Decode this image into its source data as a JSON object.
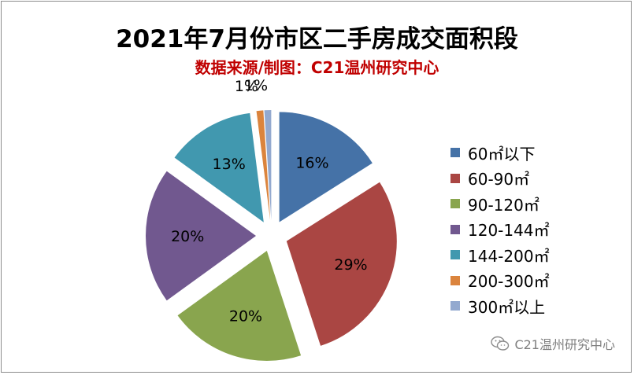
{
  "chart_data": {
    "type": "pie",
    "title": "2021年7月份市区二手房成交面积段",
    "subtitle": "数据来源/制图：C21温州研究中心",
    "categories": [
      "60㎡以下",
      "60-90㎡",
      "90-120㎡",
      "120-144㎡",
      "144-200㎡",
      "200-300㎡",
      "300㎡以上"
    ],
    "values": [
      16,
      29,
      20,
      20,
      13,
      1,
      1
    ],
    "labels": [
      "16%",
      "29%",
      "20%",
      "20%",
      "13%",
      "1%",
      "1%"
    ],
    "colors": [
      "#4572a7",
      "#aa4643",
      "#89a54e",
      "#71588f",
      "#4198af",
      "#db843d",
      "#93a9cf"
    ],
    "legend_position": "right"
  },
  "watermark": {
    "text": "C21温州研究中心",
    "icon": "wechat-icon"
  }
}
